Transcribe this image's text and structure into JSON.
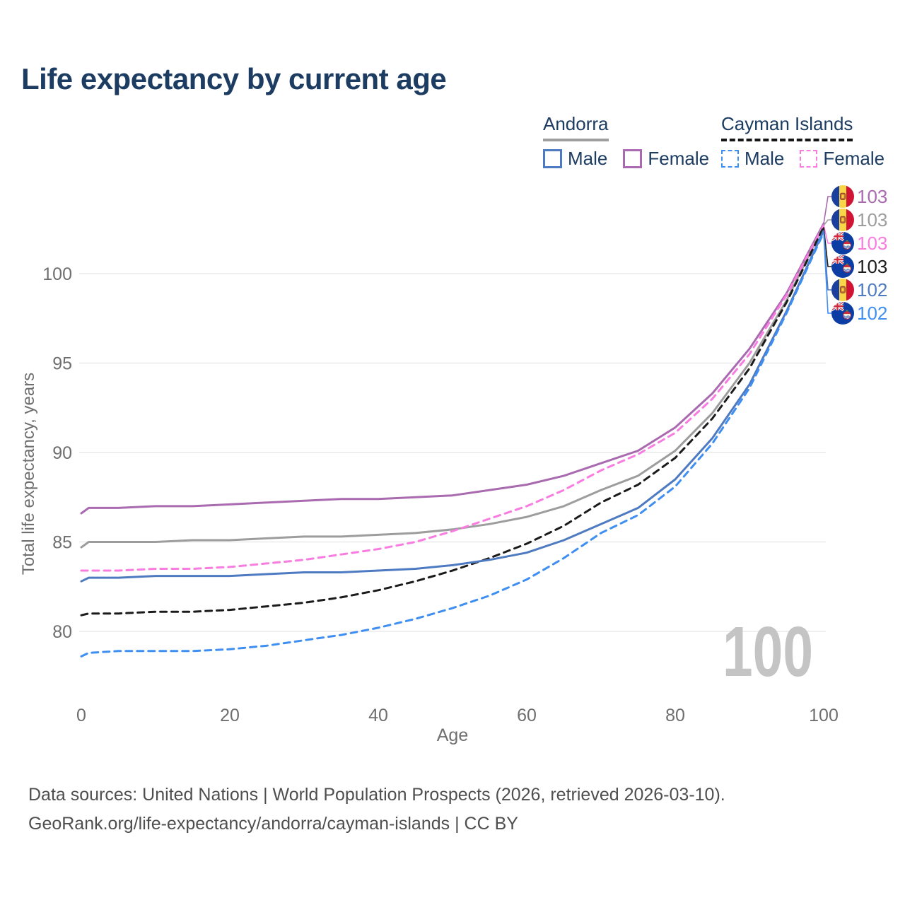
{
  "title": "Life expectancy by current age",
  "legend": {
    "andorra": {
      "label": "Andorra",
      "male": "Male",
      "female": "Female"
    },
    "cayman": {
      "label": "Cayman Islands",
      "male": "Male",
      "female": "Female"
    }
  },
  "watermark": "100",
  "footer": {
    "line1": "Data sources: United Nations | World Population Prospects (2026, retrieved 2026-03-10).",
    "line2": "GeoRank.org/life-expectancy/andorra/cayman-islands | CC BY"
  },
  "colors": {
    "title_text": "#1d3c62",
    "legend_text": "#1d3c62",
    "andorra_female": "#a96ab0",
    "andorra_total": "#9d9d9d",
    "cayman_female": "#f97ce0",
    "cayman_total": "#1b1b1b",
    "andorra_male": "#4d7ac1",
    "cayman_male": "#3f8ef2",
    "andorra_underline": "#9e9e9e",
    "cayman_underline": "#161616",
    "grid": "#eaeaea",
    "tick_text": "#6f6f6f",
    "watermark": "#c4c4c4",
    "footer_text": "#4f4f4f"
  },
  "chart_data": {
    "type": "line",
    "title": "Life expectancy by current age",
    "xlabel": "Age",
    "ylabel": "Total life expectancy, years",
    "x_ticks": [
      0,
      20,
      40,
      60,
      80,
      100
    ],
    "y_ticks": [
      80,
      85,
      90,
      95,
      100
    ],
    "xlim": [
      0,
      100
    ],
    "ylim": [
      77.5,
      103.5
    ],
    "grid": "horizontal-only",
    "legend_position": "top-right",
    "ages": [
      0,
      1,
      5,
      10,
      15,
      20,
      25,
      30,
      35,
      40,
      45,
      50,
      55,
      60,
      65,
      70,
      75,
      80,
      85,
      90,
      95,
      100
    ],
    "series": [
      {
        "id": "andorra-female",
        "name": "Andorra Female",
        "country": "Andorra",
        "sex": "Female",
        "color_key": "andorra_female",
        "dashed": false,
        "end_label": "103",
        "flag": "andorra",
        "values": [
          86.6,
          86.9,
          86.9,
          87.0,
          87.0,
          87.1,
          87.2,
          87.3,
          87.4,
          87.4,
          87.5,
          87.6,
          87.9,
          88.2,
          88.7,
          89.4,
          90.1,
          91.4,
          93.3,
          95.8,
          98.9,
          102.8
        ]
      },
      {
        "id": "andorra-total",
        "name": "Andorra Both sexes",
        "country": "Andorra",
        "sex": "Both",
        "color_key": "andorra_total",
        "dashed": false,
        "end_label": "103",
        "flag": "andorra",
        "values": [
          84.7,
          85.0,
          85.0,
          85.0,
          85.1,
          85.1,
          85.2,
          85.3,
          85.3,
          85.4,
          85.5,
          85.7,
          86.0,
          86.4,
          87.0,
          87.9,
          88.7,
          90.1,
          92.2,
          95.0,
          98.5,
          102.7
        ]
      },
      {
        "id": "cayman-female",
        "name": "Cayman Islands Female",
        "country": "Cayman Islands",
        "sex": "Female",
        "color_key": "cayman_female",
        "dashed": true,
        "end_label": "103",
        "flag": "cayman",
        "values": [
          83.4,
          83.4,
          83.4,
          83.5,
          83.5,
          83.6,
          83.8,
          84.0,
          84.3,
          84.6,
          85.0,
          85.6,
          86.3,
          87.0,
          87.9,
          89.0,
          89.9,
          91.1,
          93.0,
          95.5,
          98.8,
          102.7
        ]
      },
      {
        "id": "cayman-total",
        "name": "Cayman Islands Both sexes",
        "country": "Cayman Islands",
        "sex": "Both",
        "color_key": "cayman_total",
        "dashed": true,
        "end_label": "103",
        "flag": "cayman",
        "values": [
          80.9,
          81.0,
          81.0,
          81.1,
          81.1,
          81.2,
          81.4,
          81.6,
          81.9,
          82.3,
          82.8,
          83.4,
          84.1,
          84.9,
          85.9,
          87.2,
          88.2,
          89.7,
          91.9,
          94.7,
          98.4,
          102.6
        ]
      },
      {
        "id": "andorra-male",
        "name": "Andorra Male",
        "country": "Andorra",
        "sex": "Male",
        "color_key": "andorra_male",
        "dashed": false,
        "end_label": "102",
        "flag": "andorra",
        "values": [
          82.8,
          83.0,
          83.0,
          83.1,
          83.1,
          83.1,
          83.2,
          83.3,
          83.3,
          83.4,
          83.5,
          83.7,
          84.0,
          84.4,
          85.1,
          86.0,
          86.9,
          88.5,
          90.8,
          93.8,
          97.9,
          102.4
        ]
      },
      {
        "id": "cayman-male",
        "name": "Cayman Islands Male",
        "country": "Cayman Islands",
        "sex": "Male",
        "color_key": "cayman_male",
        "dashed": true,
        "end_label": "102",
        "flag": "cayman",
        "values": [
          78.6,
          78.8,
          78.9,
          78.9,
          78.9,
          79.0,
          79.2,
          79.5,
          79.8,
          80.2,
          80.7,
          81.3,
          82.0,
          82.9,
          84.1,
          85.5,
          86.5,
          88.1,
          90.5,
          93.6,
          97.8,
          102.3
        ]
      }
    ]
  }
}
